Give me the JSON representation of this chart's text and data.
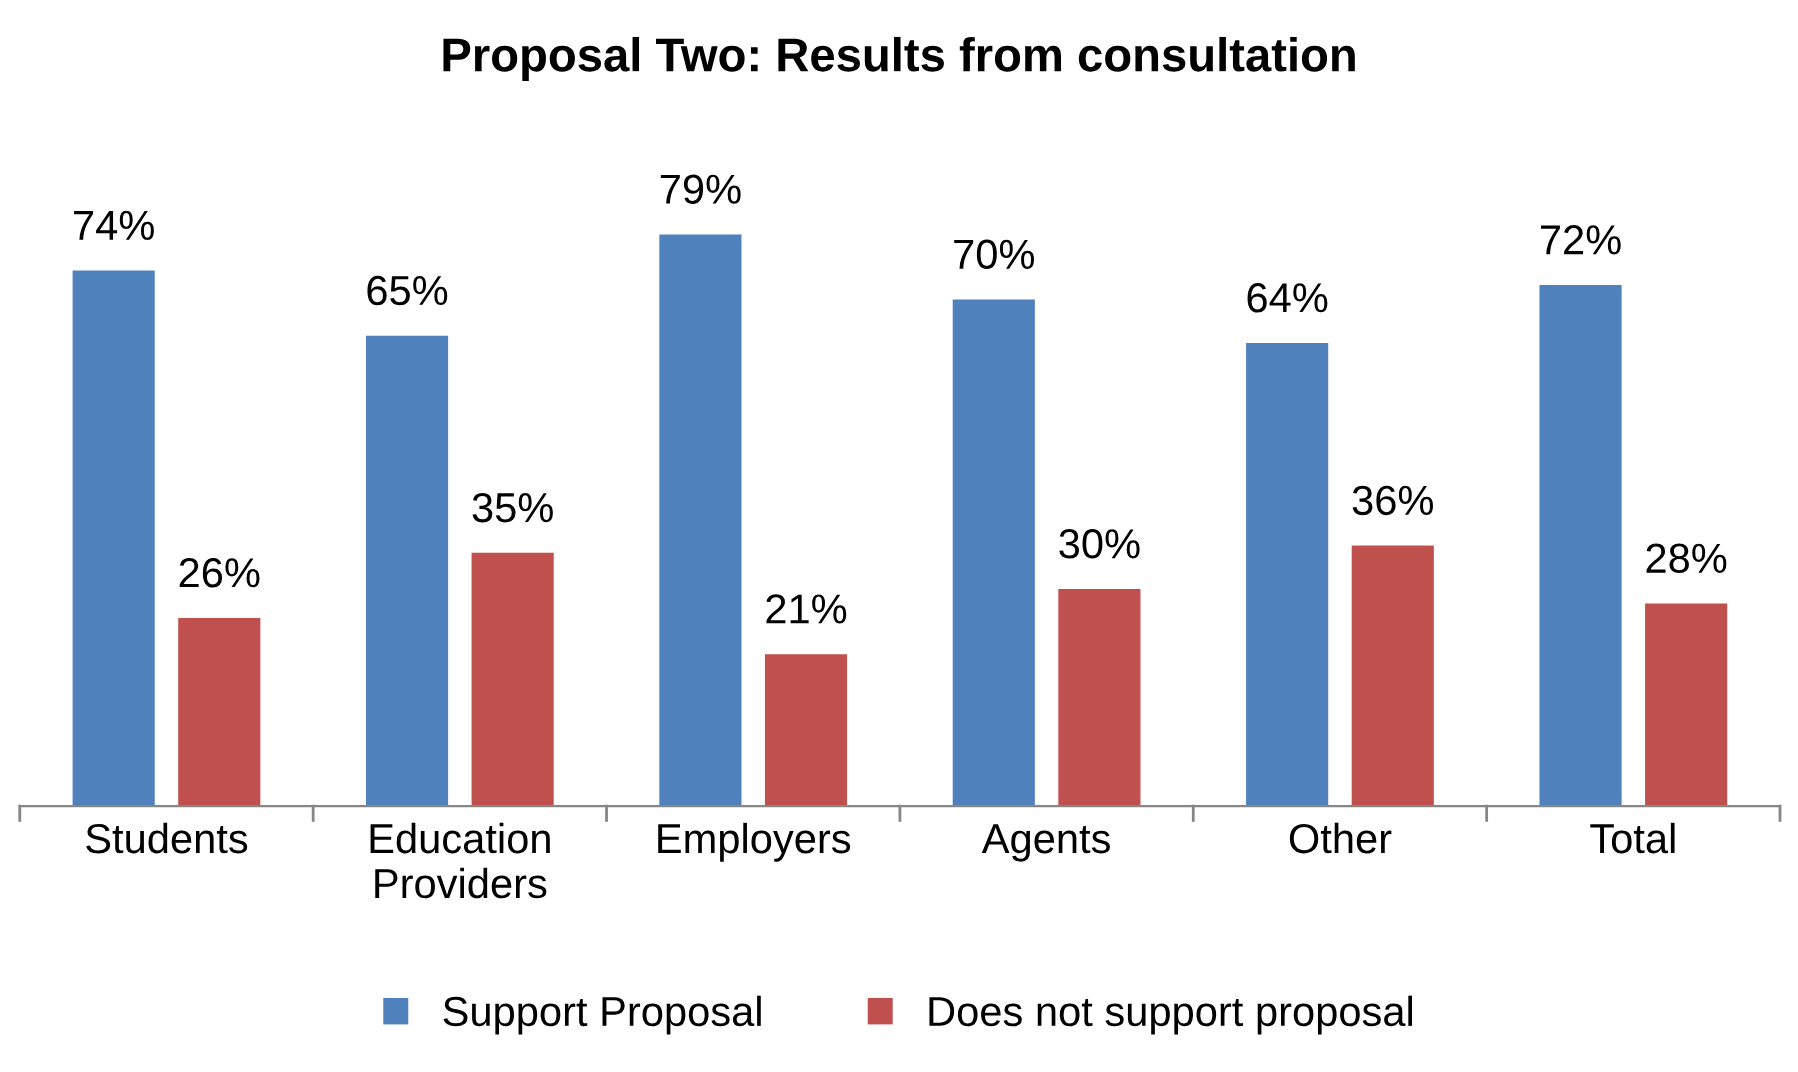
{
  "chart_data": {
    "type": "bar",
    "title": "Proposal Two: Results from consultation",
    "categories": [
      "Students",
      "Education\nProviders",
      "Employers",
      "Agents",
      "Other",
      "Total"
    ],
    "series": [
      {
        "name": "Support Proposal",
        "color": "#4f81bd",
        "values": [
          74,
          65,
          79,
          70,
          64,
          72
        ],
        "value_labels": [
          "74%",
          "65%",
          "79%",
          "70%",
          "64%",
          "72%"
        ]
      },
      {
        "name": "Does not support proposal",
        "color": "#c0504d",
        "values": [
          26,
          35,
          21,
          30,
          36,
          28
        ],
        "value_labels": [
          "26%",
          "35%",
          "21%",
          "30%",
          "36%",
          "28%"
        ]
      }
    ],
    "legend": "bottom",
    "grid": false
  }
}
